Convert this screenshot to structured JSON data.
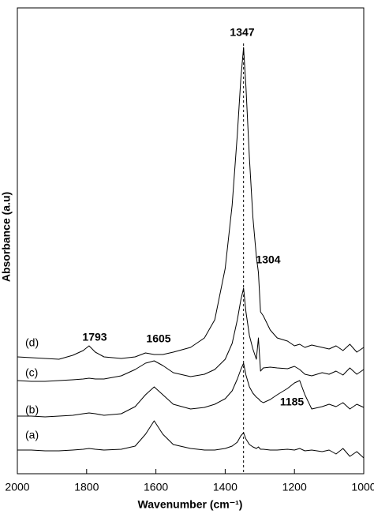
{
  "chart_data": {
    "type": "line",
    "xlabel": "Wavenumber (cm⁻¹)",
    "ylabel": "Absorbance (a.u)",
    "xlim": [
      2000,
      1000
    ],
    "xticks": [
      2000,
      1800,
      1600,
      1400,
      1200,
      1000
    ],
    "ylim": [
      0,
      59
    ],
    "x": [
      2000,
      1960,
      1920,
      1880,
      1840,
      1810,
      1793,
      1775,
      1750,
      1700,
      1660,
      1630,
      1605,
      1580,
      1550,
      1500,
      1460,
      1430,
      1400,
      1380,
      1365,
      1355,
      1347,
      1340,
      1330,
      1320,
      1310,
      1304,
      1298,
      1290,
      1270,
      1250,
      1220,
      1200,
      1185,
      1170,
      1150,
      1120,
      1100,
      1080,
      1060,
      1040,
      1020,
      1000
    ],
    "series": [
      {
        "name": "(a)",
        "color": "#000000",
        "values": [
          3.0,
          3.0,
          2.9,
          2.9,
          3.0,
          3.1,
          3.2,
          3.1,
          3.0,
          3.1,
          3.5,
          5.0,
          6.7,
          5.0,
          3.7,
          3.2,
          3.0,
          3.0,
          3.2,
          3.5,
          4.0,
          4.8,
          5.2,
          4.4,
          3.7,
          3.4,
          3.2,
          3.4,
          3.1,
          3.1,
          3.0,
          3.0,
          3.1,
          3.0,
          3.2,
          2.9,
          3.0,
          2.8,
          3.0,
          2.5,
          3.2,
          2.2,
          2.8,
          2.0
        ]
      },
      {
        "name": "(b)",
        "color": "#000000",
        "values": [
          7.3,
          7.3,
          7.2,
          7.3,
          7.4,
          7.6,
          7.7,
          7.6,
          7.4,
          7.6,
          8.5,
          10.0,
          11.0,
          10.0,
          8.8,
          8.2,
          8.4,
          8.8,
          9.5,
          10.5,
          12.0,
          13.2,
          14.0,
          12.5,
          11.0,
          10.2,
          9.7,
          9.5,
          9.2,
          9.0,
          9.4,
          10.0,
          10.8,
          11.5,
          11.8,
          10.0,
          8.2,
          8.5,
          8.8,
          8.5,
          9.0,
          8.2,
          8.8,
          8.4
        ]
      },
      {
        "name": "(c)",
        "color": "#000000",
        "values": [
          11.8,
          11.7,
          11.7,
          11.8,
          11.9,
          12.0,
          12.1,
          12.0,
          12.0,
          12.4,
          13.2,
          14.0,
          14.3,
          13.7,
          12.8,
          12.3,
          12.6,
          13.2,
          14.5,
          16.5,
          19.5,
          22.0,
          23.5,
          20.5,
          17.5,
          15.8,
          14.5,
          17.2,
          13.0,
          13.4,
          13.5,
          13.4,
          13.3,
          13.6,
          13.2,
          12.6,
          12.4,
          12.8,
          12.6,
          13.0,
          12.5,
          13.4,
          12.6,
          13.2
        ]
      },
      {
        "name": "(d)",
        "color": "#000000",
        "values": [
          14.8,
          14.7,
          14.6,
          14.5,
          15.0,
          15.6,
          16.2,
          15.4,
          14.8,
          14.6,
          14.8,
          15.3,
          15.1,
          15.1,
          15.4,
          16.0,
          17.2,
          19.5,
          26.0,
          34.0,
          43.0,
          50.0,
          54.0,
          49.0,
          40.0,
          32.5,
          27.5,
          25.5,
          20.5,
          20.0,
          18.2,
          17.2,
          16.8,
          16.2,
          16.4,
          16.0,
          16.3,
          16.0,
          15.8,
          16.2,
          15.6,
          16.4,
          15.4,
          16.0
        ]
      }
    ],
    "annotations": [
      1347,
      1304,
      1793,
      1605,
      1185
    ]
  }
}
